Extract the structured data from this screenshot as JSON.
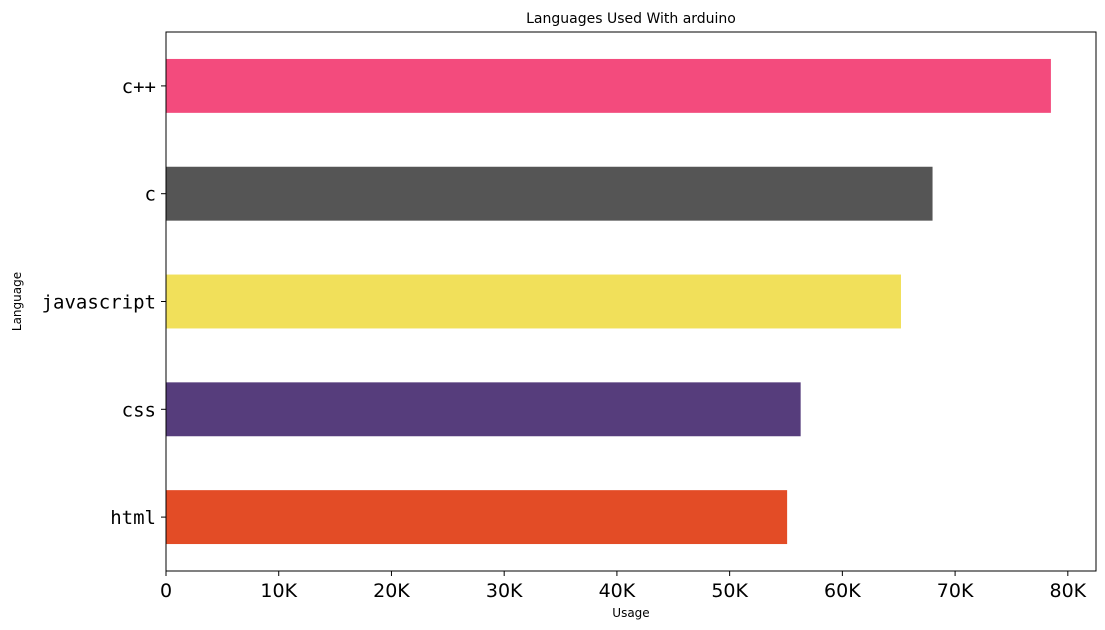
{
  "chart_data": {
    "type": "bar",
    "orientation": "horizontal",
    "title": "Languages Used With arduino",
    "xlabel": "Usage",
    "ylabel": "Language",
    "categories": [
      "html",
      "css",
      "javascript",
      "c",
      "c++"
    ],
    "values": [
      55100,
      56300,
      65200,
      68000,
      78500
    ],
    "colors": [
      "#e34c26",
      "#563d7c",
      "#f1e05a",
      "#555555",
      "#f34b7d"
    ],
    "xlim": [
      0,
      82500
    ],
    "xticks": [
      0,
      10000,
      20000,
      30000,
      40000,
      50000,
      60000,
      70000,
      80000
    ],
    "xtick_labels": [
      "0",
      "10K",
      "20K",
      "30K",
      "40K",
      "50K",
      "60K",
      "70K",
      "80K"
    ],
    "grid": false,
    "legend": "none"
  }
}
